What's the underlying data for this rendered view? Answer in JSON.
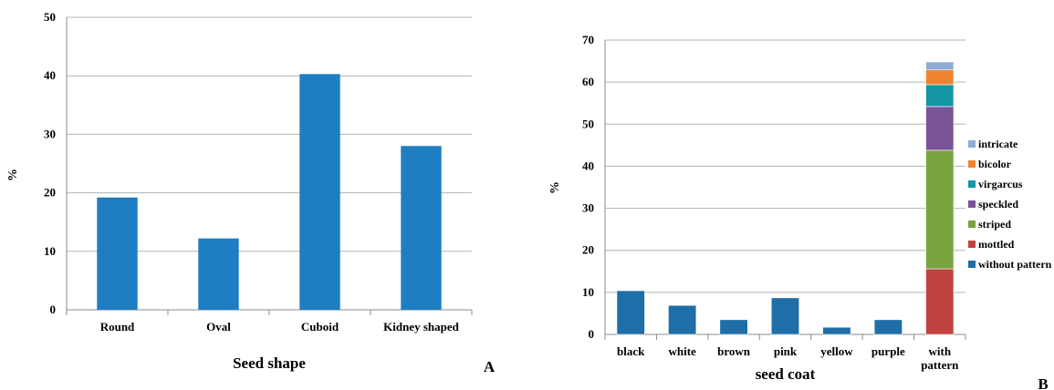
{
  "chart_data": [
    {
      "type": "bar",
      "panel_label": "A",
      "categories": [
        "Round",
        "Oval",
        "Cuboid",
        "Kidney shaped"
      ],
      "values": [
        19.2,
        12.2,
        40.3,
        28.0
      ],
      "xlabel": "Seed shape",
      "ylabel": "%",
      "ylim": [
        0,
        50
      ],
      "yticks": [
        0,
        10,
        20,
        30,
        40,
        50
      ],
      "grid": true,
      "color": "#1f7dc1"
    },
    {
      "type": "bar",
      "stacked": true,
      "panel_label": "B",
      "categories": [
        "black",
        "white",
        "brown",
        "pink",
        "yellow",
        "purple",
        "with pattern"
      ],
      "category_lines": [
        [
          "black"
        ],
        [
          "white"
        ],
        [
          "brown"
        ],
        [
          "pink"
        ],
        [
          "yellow"
        ],
        [
          "purple"
        ],
        [
          "with",
          "pattern"
        ]
      ],
      "series": [
        {
          "name": "without pattern",
          "color": "#1f6ea8",
          "values": [
            10.4,
            6.9,
            3.5,
            8.7,
            1.7,
            3.5,
            0
          ]
        },
        {
          "name": "mottled",
          "color": "#c0423e",
          "values": [
            0,
            0,
            0,
            0,
            0,
            0,
            15.6
          ]
        },
        {
          "name": "striped",
          "color": "#78a440",
          "values": [
            0,
            0,
            0,
            0,
            0,
            0,
            28.2
          ]
        },
        {
          "name": "speckled",
          "color": "#7b5397",
          "values": [
            0,
            0,
            0,
            0,
            0,
            0,
            10.4
          ]
        },
        {
          "name": "virgarcus",
          "color": "#1496a6",
          "values": [
            0,
            0,
            0,
            0,
            0,
            0,
            5.2
          ]
        },
        {
          "name": "bicolor",
          "color": "#f0832e",
          "values": [
            0,
            0,
            0,
            0,
            0,
            0,
            3.5
          ]
        },
        {
          "name": "intricate",
          "color": "#8fabd6",
          "values": [
            0,
            0,
            0,
            0,
            0,
            0,
            1.9
          ]
        }
      ],
      "xlabel": "seed coat",
      "ylabel": "%",
      "ylim": [
        0,
        70
      ],
      "yticks": [
        0,
        10,
        20,
        30,
        40,
        50,
        60,
        70
      ],
      "grid": true,
      "legend_position": "right"
    }
  ]
}
